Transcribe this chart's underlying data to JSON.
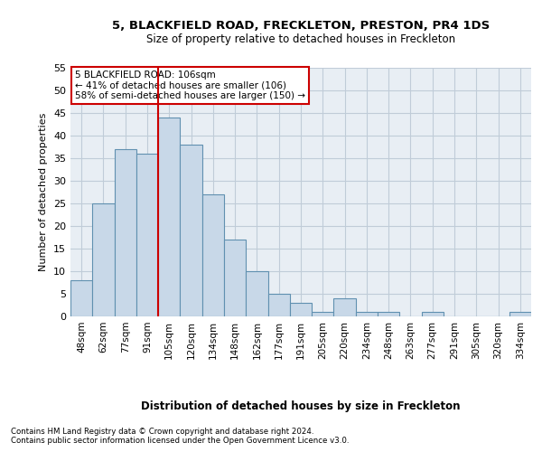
{
  "title1": "5, BLACKFIELD ROAD, FRECKLETON, PRESTON, PR4 1DS",
  "title2": "Size of property relative to detached houses in Freckleton",
  "xlabel": "Distribution of detached houses by size in Freckleton",
  "ylabel": "Number of detached properties",
  "categories": [
    "48sqm",
    "62sqm",
    "77sqm",
    "91sqm",
    "105sqm",
    "120sqm",
    "134sqm",
    "148sqm",
    "162sqm",
    "177sqm",
    "191sqm",
    "205sqm",
    "220sqm",
    "234sqm",
    "248sqm",
    "263sqm",
    "277sqm",
    "291sqm",
    "305sqm",
    "320sqm",
    "334sqm"
  ],
  "values": [
    8,
    25,
    37,
    36,
    44,
    38,
    27,
    17,
    10,
    5,
    3,
    1,
    4,
    1,
    1,
    0,
    1,
    0,
    0,
    0,
    1
  ],
  "bar_color": "#c8d8e8",
  "bar_edge_color": "#6090b0",
  "grid_color": "#c0ccd8",
  "background_color": "#e8eef4",
  "vline_index": 4,
  "vline_color": "#cc0000",
  "annotation_text": "5 BLACKFIELD ROAD: 106sqm\n← 41% of detached houses are smaller (106)\n58% of semi-detached houses are larger (150) →",
  "annotation_box_color": "#cc0000",
  "ylim": [
    0,
    55
  ],
  "yticks": [
    0,
    5,
    10,
    15,
    20,
    25,
    30,
    35,
    40,
    45,
    50,
    55
  ],
  "footer1": "Contains HM Land Registry data © Crown copyright and database right 2024.",
  "footer2": "Contains public sector information licensed under the Open Government Licence v3.0."
}
